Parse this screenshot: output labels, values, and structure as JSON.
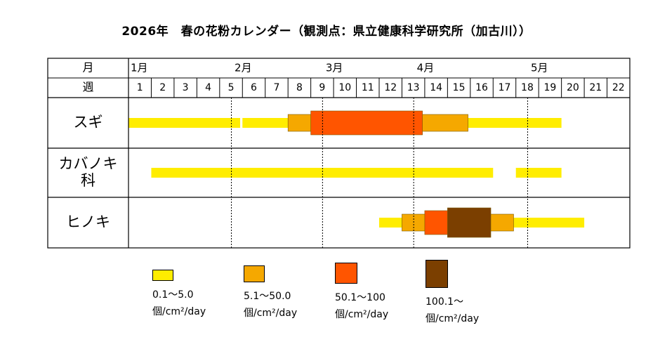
{
  "title": "2026年　春の花粉カレンダー（観測点：県立健康科学研究所（加古川））",
  "header": {
    "month_label": "月",
    "week_label": "週"
  },
  "months": [
    {
      "label": "1月",
      "start_week": 1
    },
    {
      "label": "2月",
      "start_week": 6
    },
    {
      "label": "3月",
      "start_week": 10
    },
    {
      "label": "4月",
      "start_week": 14
    },
    {
      "label": "5月",
      "start_week": 19
    }
  ],
  "weeks": [
    "1",
    "2",
    "3",
    "4",
    "5",
    "6",
    "7",
    "8",
    "9",
    "10",
    "11",
    "12",
    "13",
    "14",
    "15",
    "16",
    "17",
    "18",
    "19",
    "20",
    "21",
    "22"
  ],
  "month_divider_weeks": [
    6,
    10,
    14,
    19
  ],
  "chart_data": {
    "type": "gantt",
    "x_unit": "week",
    "levels": [
      {
        "id": 1,
        "range": "0.1～5.0",
        "unit": "個/cm²/day",
        "color": "#FFED00"
      },
      {
        "id": 2,
        "range": "5.1～50.0",
        "unit": "個/cm²/day",
        "color": "#F5A800"
      },
      {
        "id": 3,
        "range": "50.1～100",
        "unit": "個/cm²/day",
        "color": "#FF5500"
      },
      {
        "id": 4,
        "range": "100.1～",
        "unit": "個/cm²/day",
        "color": "#7B3F00"
      }
    ],
    "rows": [
      {
        "name": "スギ",
        "segments": [
          {
            "start": 1,
            "end": 4.9,
            "level": 1
          },
          {
            "start": 6,
            "end": 7.9,
            "level": 1
          },
          {
            "start": 8,
            "end": 8.9,
            "level": 2
          },
          {
            "start": 9,
            "end": 12.9,
            "level": 3
          },
          {
            "start": 13,
            "end": 14.9,
            "level": 2
          },
          {
            "start": 15,
            "end": 19,
            "level": 1
          }
        ]
      },
      {
        "name": "カバノキ\n科",
        "segments": [
          {
            "start": 2,
            "end": 16,
            "level": 1
          },
          {
            "start": 18,
            "end": 19,
            "level": 1
          }
        ]
      },
      {
        "name": "ヒノキ",
        "segments": [
          {
            "start": 12,
            "end": 12.9,
            "level": 1
          },
          {
            "start": 13,
            "end": 13.9,
            "level": 2
          },
          {
            "start": 14,
            "end": 14.9,
            "level": 3
          },
          {
            "start": 15,
            "end": 15.9,
            "level": 4
          },
          {
            "start": 16,
            "end": 16.9,
            "level": 2
          },
          {
            "start": 17,
            "end": 20,
            "level": 1
          }
        ]
      }
    ]
  }
}
